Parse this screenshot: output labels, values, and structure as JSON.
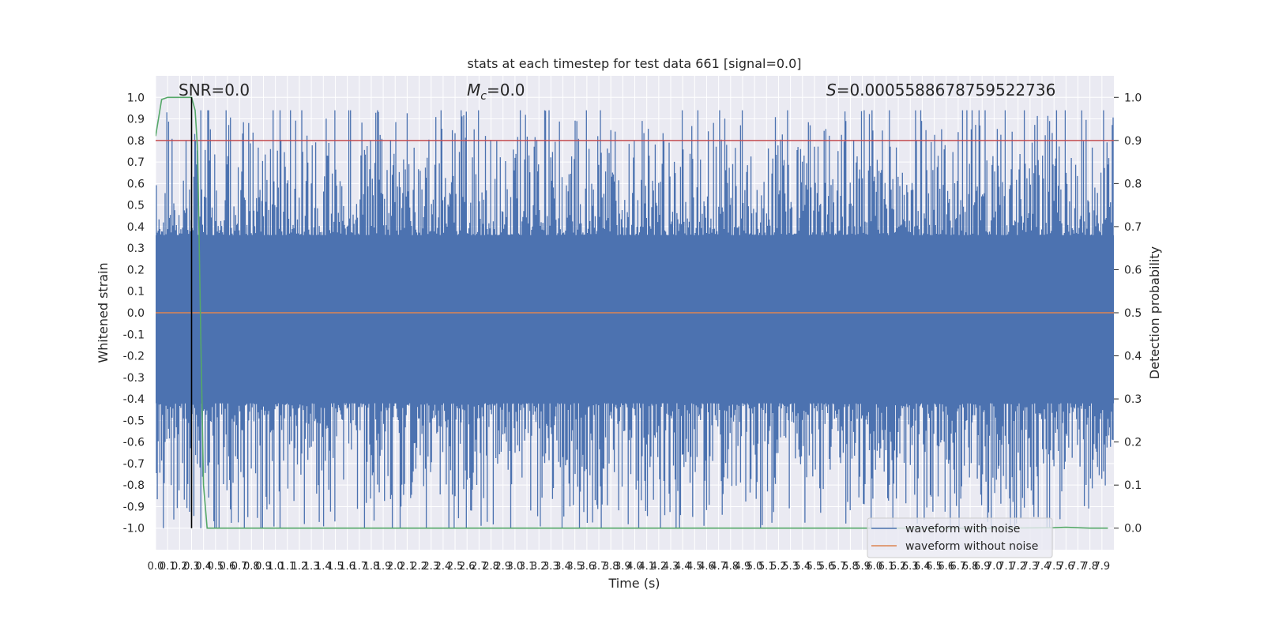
{
  "chart_data": {
    "type": "line",
    "title": "stats at each timestep for test data 661 [signal=0.0]",
    "xlabel": "Time (s)",
    "ylabel": "Whitened strain",
    "y2label": "Detection probability",
    "xlim": [
      0.0,
      8.0
    ],
    "ylim": [
      -1.1,
      1.1
    ],
    "y2lim": [
      -0.05,
      1.05
    ],
    "x_ticks": [
      "0.0",
      "0.1",
      "0.2",
      "0.3",
      "0.4",
      "0.5",
      "0.6",
      "0.7",
      "0.8",
      "0.9",
      "1.0",
      "1.1",
      "1.2",
      "1.3",
      "1.4",
      "1.5",
      "1.6",
      "1.7",
      "1.8",
      "1.9",
      "2.0",
      "2.1",
      "2.2",
      "2.3",
      "2.4",
      "2.5",
      "2.6",
      "2.7",
      "2.8",
      "2.9",
      "3.0",
      "3.1",
      "3.2",
      "3.3",
      "3.4",
      "3.5",
      "3.6",
      "3.7",
      "3.8",
      "3.9",
      "4.0",
      "4.1",
      "4.2",
      "4.3",
      "4.4",
      "4.5",
      "4.6",
      "4.7",
      "4.8",
      "4.9",
      "5.0",
      "5.1",
      "5.2",
      "5.3",
      "5.4",
      "5.5",
      "5.6",
      "5.7",
      "5.8",
      "5.9",
      "6.0",
      "6.1",
      "6.2",
      "6.3",
      "6.4",
      "6.5",
      "6.6",
      "6.7",
      "6.8",
      "6.9",
      "7.0",
      "7.1",
      "7.2",
      "7.3",
      "7.4",
      "7.5",
      "7.6",
      "7.7",
      "7.8",
      "7.9"
    ],
    "y_ticks": [
      "1.0",
      "0.9",
      "0.8",
      "0.7",
      "0.6",
      "0.5",
      "0.4",
      "0.3",
      "0.2",
      "0.1",
      "0.0",
      "-0.1",
      "-0.2",
      "-0.3",
      "-0.4",
      "-0.5",
      "-0.6",
      "-0.7",
      "-0.8",
      "-0.9",
      "-1.0"
    ],
    "y2_ticks": [
      "1.0",
      "0.9",
      "0.8",
      "0.7",
      "0.6",
      "0.5",
      "0.4",
      "0.3",
      "0.2",
      "0.1",
      "0.0"
    ],
    "grid": true,
    "legend_position": "bottom-right",
    "annotations": {
      "snr": "SNR=0.0",
      "mc_symbol": "M",
      "mc_sub": "c",
      "mc_value": "=0.0",
      "s_symbol": "S",
      "s_value": "=0.0005588678759522736"
    },
    "series": [
      {
        "name": "waveform with noise",
        "color": "#4c72b0",
        "axis": "left",
        "kind": "noisy-strain",
        "core_band": [
          -0.42,
          0.36
        ],
        "peak_range": [
          -1.0,
          0.94
        ]
      },
      {
        "name": "waveform without noise",
        "color": "#dd8452",
        "axis": "left",
        "y_constant": 0.0
      }
    ],
    "detection_probability": {
      "color": "#55a868",
      "axis": "right",
      "x": [
        0.0,
        0.05,
        0.1,
        0.15,
        0.2,
        0.25,
        0.3,
        0.33,
        0.35,
        0.38,
        0.4,
        0.43,
        0.5,
        1.0,
        2.0,
        3.0,
        4.0,
        5.0,
        6.0,
        7.0,
        7.5,
        7.6,
        7.7,
        7.8,
        7.95
      ],
      "y": [
        0.91,
        0.995,
        1.0,
        1.0,
        1.0,
        1.0,
        1.0,
        0.97,
        0.88,
        0.4,
        0.1,
        0.0,
        0.0,
        0.0,
        0.0,
        0.0,
        0.0,
        0.0,
        0.0,
        0.0,
        0.001,
        0.002,
        0.001,
        0.0,
        0.0
      ]
    },
    "threshold": {
      "color": "#c44e52",
      "y2": 0.9
    },
    "marker_line": {
      "color": "#000000",
      "x": 0.3
    }
  }
}
